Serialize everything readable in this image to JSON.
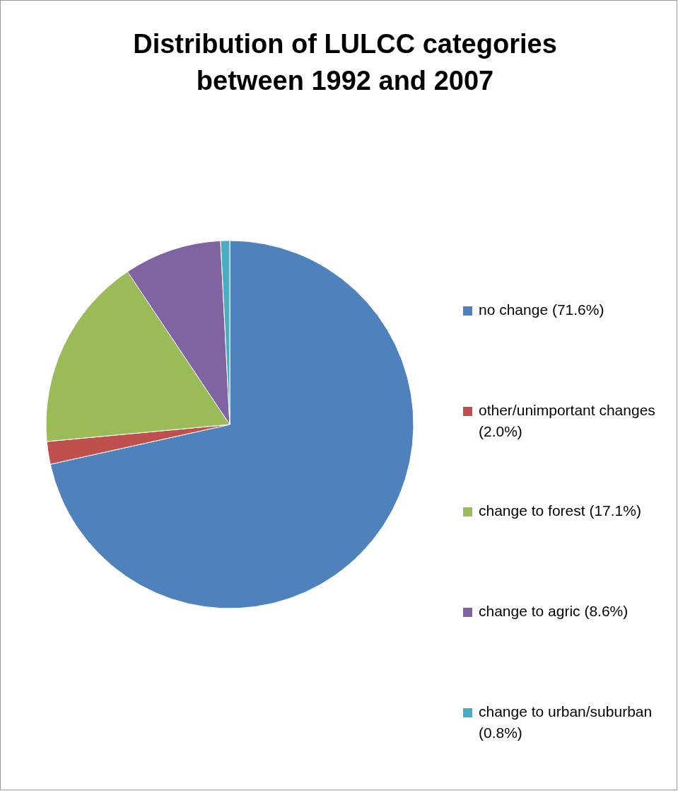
{
  "chart_data": {
    "type": "pie",
    "title": "Distribution of LULCC categories between 1992 and 2007",
    "categories": [
      "no change (71.6%)",
      "other/unimportant changes (2.0%)",
      "change to forest (17.1%)",
      "change to agric (8.6%)",
      "change to urban/suburban (0.8%)"
    ],
    "values": [
      71.6,
      2.0,
      17.1,
      8.6,
      0.8
    ],
    "colors": [
      "#4f81bd",
      "#c0504d",
      "#9bbb59",
      "#8064a2",
      "#4bacc6"
    ],
    "legend": "right"
  }
}
